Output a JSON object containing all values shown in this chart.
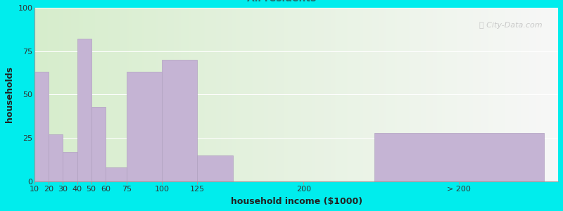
{
  "xlabel": "household income ($1000)",
  "ylabel": "households",
  "bar_labels": [
    "10",
    "20",
    "30",
    "40",
    "50",
    "60",
    "75",
    "100",
    "125",
    "200",
    "> 200"
  ],
  "bar_heights": [
    63,
    27,
    17,
    82,
    43,
    8,
    63,
    70,
    15,
    0,
    28
  ],
  "bar_lefts": [
    10,
    20,
    30,
    40,
    50,
    60,
    75,
    100,
    125,
    200,
    250
  ],
  "bar_widths": [
    10,
    10,
    10,
    10,
    10,
    15,
    25,
    25,
    25,
    0,
    120
  ],
  "bar_xticks": [
    10,
    20,
    30,
    40,
    50,
    60,
    75,
    100,
    125,
    200,
    310
  ],
  "bar_color": "#c5b4d4",
  "bar_edgecolor": "#b0a0c0",
  "background_color": "#00eded",
  "ylim": [
    0,
    100
  ],
  "yticks": [
    0,
    25,
    50,
    75,
    100
  ],
  "xlim": [
    10,
    380
  ],
  "title_fontsize": 12,
  "subtitle_fontsize": 10,
  "subtitle_color": "#207070",
  "axis_label_fontsize": 9,
  "tick_fontsize": 8,
  "watermark": "ⓘ City-Data.com"
}
